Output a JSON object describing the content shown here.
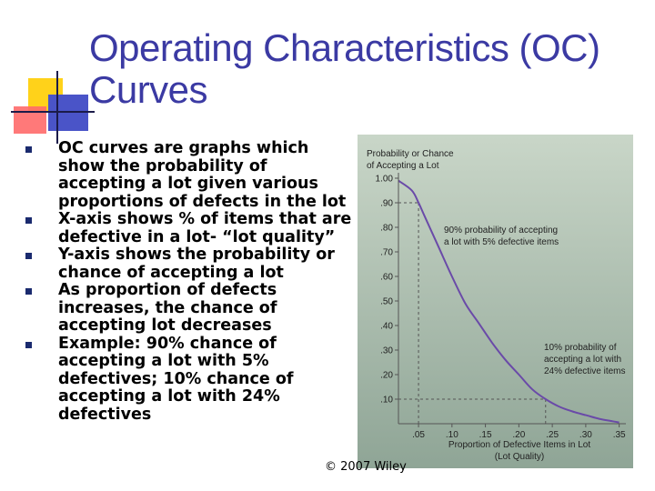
{
  "slide": {
    "title": "Operating Characteristics (OC) Curves",
    "bullets": [
      "OC curves are graphs which show the probability of accepting a lot given various proportions of defects in the lot",
      "X-axis shows % of items that are defective in a lot- “lot quality”",
      "Y-axis shows the probability or chance of accepting a lot",
      "As proportion of defects increases, the chance of accepting lot decreases",
      "Example: 90% chance of accepting a lot with 5% defectives; 10% chance of accepting a lot with 24% defectives"
    ],
    "footer": "© 2007 Wiley",
    "colors": {
      "title": "#3b3aa3",
      "curve": "#6a4aa8",
      "panel_top": "#c9d6c8",
      "panel_bottom": "#8fa596"
    }
  },
  "chart_data": {
    "type": "line",
    "ylabel": "Probability or Chance of Accepting a Lot",
    "xlabel": "Proportion of Defective Items in Lot (Lot Quality)",
    "xlabel_line1": "Proportion of Defective Items in Lot",
    "xlabel_line2": "(Lot Quality)",
    "ylabel_line1": "Probability or Chance",
    "ylabel_line2": "of Accepting a Lot",
    "xlim": [
      0.02,
      0.36
    ],
    "ylim": [
      0,
      1.0
    ],
    "x_ticks": [
      ".05",
      ".10",
      ".15",
      ".20",
      ".25",
      ".30",
      ".35"
    ],
    "x_tick_values": [
      0.05,
      0.1,
      0.15,
      0.2,
      0.25,
      0.3,
      0.35
    ],
    "y_ticks": [
      "1.00",
      ".90",
      ".80",
      ".70",
      ".60",
      ".50",
      ".40",
      ".30",
      ".20",
      ".10"
    ],
    "y_tick_values": [
      1.0,
      0.9,
      0.8,
      0.7,
      0.6,
      0.5,
      0.4,
      0.3,
      0.2,
      0.1
    ],
    "series": [
      {
        "x": [
          0.02,
          0.04,
          0.05,
          0.06,
          0.08,
          0.1,
          0.12,
          0.14,
          0.16,
          0.18,
          0.2,
          0.22,
          0.24,
          0.26,
          0.28,
          0.3,
          0.32,
          0.34,
          0.35
        ],
        "y": [
          0.99,
          0.95,
          0.9,
          0.84,
          0.72,
          0.6,
          0.49,
          0.41,
          0.33,
          0.26,
          0.2,
          0.14,
          0.1,
          0.07,
          0.05,
          0.035,
          0.02,
          0.01,
          0.005
        ]
      }
    ],
    "references": [
      {
        "x": 0.05,
        "y": 0.9
      },
      {
        "x": 0.24,
        "y": 0.1
      }
    ],
    "annotations": [
      {
        "line1": "90% probability of accepting",
        "line2": "a lot with 5% defective items"
      },
      {
        "line1": "10% probability of",
        "line2": "accepting a lot with",
        "line3": "24% defective items"
      }
    ],
    "grid": false
  }
}
